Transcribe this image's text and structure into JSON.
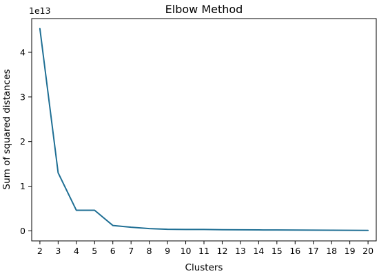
{
  "chart_data": {
    "type": "line",
    "title": "Elbow Method",
    "xlabel": "Clusters",
    "ylabel": "Sum of squared distances",
    "y_offset_label": "1e13",
    "x": [
      2,
      3,
      4,
      5,
      6,
      7,
      8,
      9,
      10,
      11,
      12,
      13,
      14,
      15,
      16,
      17,
      18,
      19,
      20
    ],
    "y": [
      4.53,
      1.3,
      0.46,
      0.46,
      0.12,
      0.08,
      0.05,
      0.035,
      0.03,
      0.03,
      0.025,
      0.022,
      0.02,
      0.018,
      0.016,
      0.015,
      0.013,
      0.012,
      0.01
    ],
    "x_ticks": [
      2,
      3,
      4,
      5,
      6,
      7,
      8,
      9,
      10,
      11,
      12,
      13,
      14,
      15,
      16,
      17,
      18,
      19,
      20
    ],
    "y_ticks": [
      0,
      1,
      2,
      3,
      4
    ],
    "xlim": [
      1.55,
      20.45
    ],
    "ylim": [
      -0.226,
      4.756
    ],
    "line_color": "#1f6f94",
    "grid": false,
    "legend": false
  }
}
